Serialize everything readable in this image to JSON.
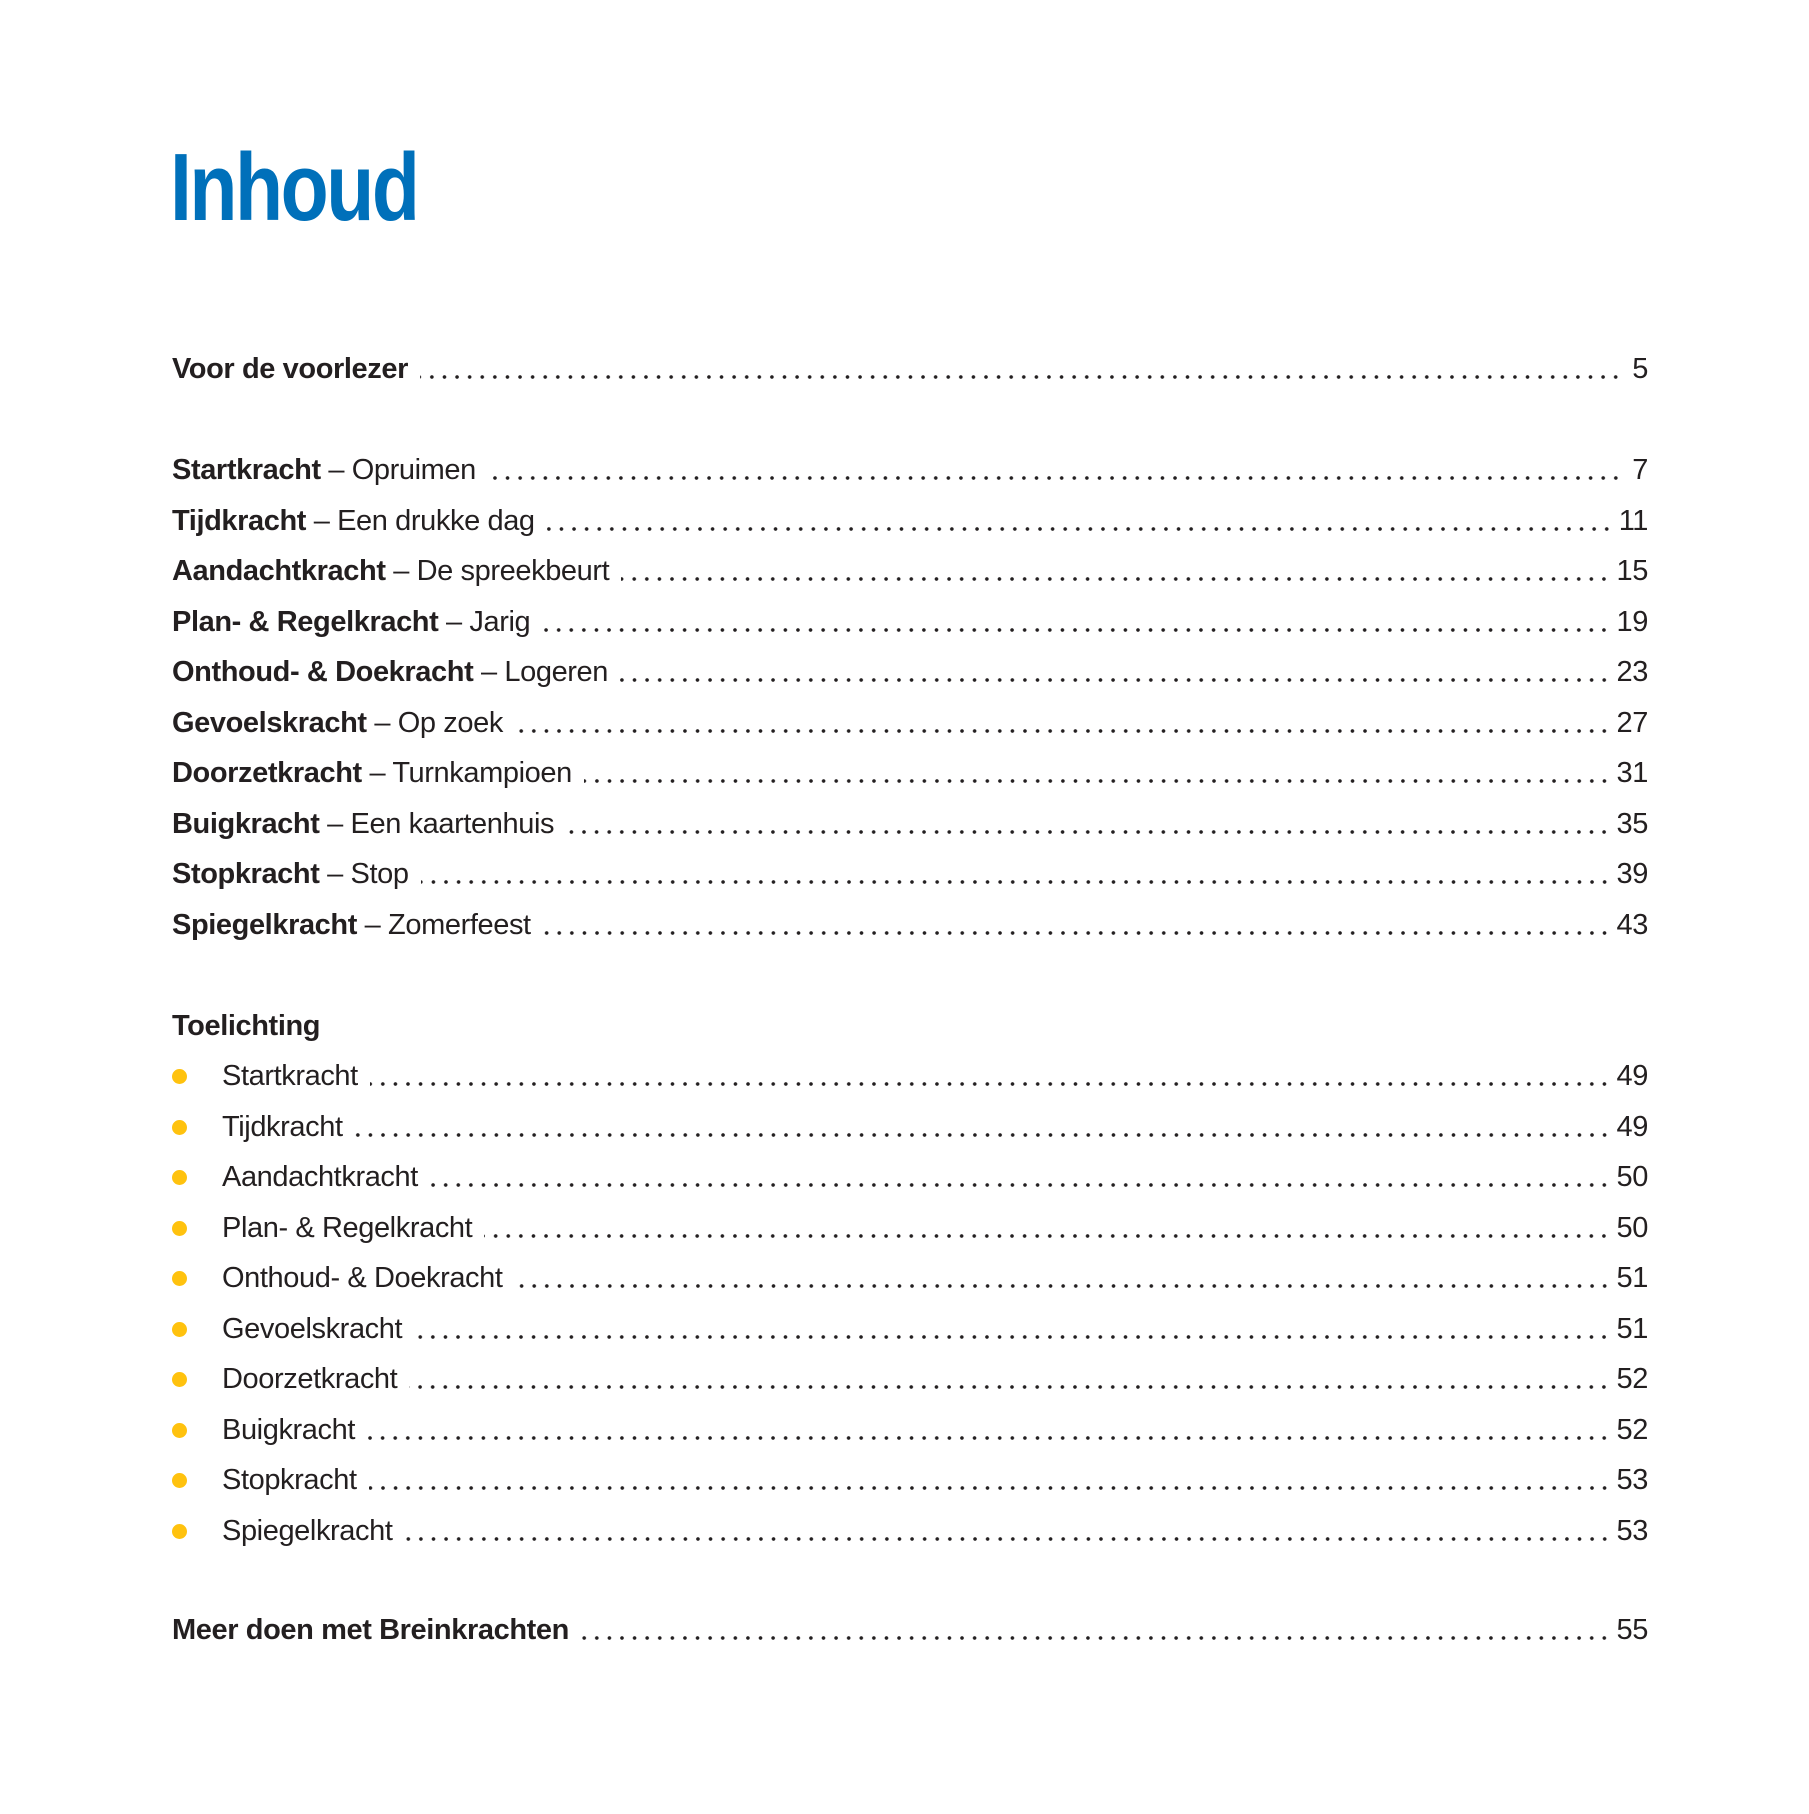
{
  "title": "Inhoud",
  "intro": {
    "label": "Voor de voorlezer",
    "page": "5"
  },
  "chapters": [
    {
      "bold": "Startkracht",
      "rest": " – Opruimen",
      "page": "7"
    },
    {
      "bold": "Tijdkracht",
      "rest": " – Een drukke dag",
      "page": "11"
    },
    {
      "bold": "Aandachtkracht",
      "rest": " – De spreekbeurt",
      "page": "15"
    },
    {
      "bold": "Plan- & Regelkracht",
      "rest": " – Jarig",
      "page": "19"
    },
    {
      "bold": "Onthoud- & Doekracht",
      "rest": " – Logeren",
      "page": "23"
    },
    {
      "bold": "Gevoelskracht",
      "rest": " – Op zoek",
      "page": "27"
    },
    {
      "bold": "Doorzetkracht",
      "rest": " – Turnkampioen",
      "page": "31"
    },
    {
      "bold": "Buigkracht",
      "rest": " – Een kaartenhuis",
      "page": "35"
    },
    {
      "bold": "Stopkracht",
      "rest": " – Stop",
      "page": "39"
    },
    {
      "bold": "Spiegelkracht",
      "rest": " – Zomerfeest",
      "page": "43"
    }
  ],
  "toelichting": {
    "heading": "Toelichting",
    "bullet_color": "#ffc20e",
    "items": [
      {
        "label": "Startkracht",
        "page": "49"
      },
      {
        "label": "Tijdkracht",
        "page": "49"
      },
      {
        "label": "Aandachtkracht",
        "page": "50"
      },
      {
        "label": "Plan- & Regelkracht",
        "page": "50"
      },
      {
        "label": "Onthoud- & Doekracht",
        "page": "51"
      },
      {
        "label": "Gevoelskracht",
        "page": "51"
      },
      {
        "label": "Doorzetkracht",
        "page": "52"
      },
      {
        "label": "Buigkracht",
        "page": "52"
      },
      {
        "label": "Stopkracht",
        "page": "53"
      },
      {
        "label": "Spiegelkracht",
        "page": "53"
      }
    ]
  },
  "outro": {
    "label": "Meer doen met Breinkrachten",
    "page": "55"
  },
  "title_color": "#0070ba"
}
